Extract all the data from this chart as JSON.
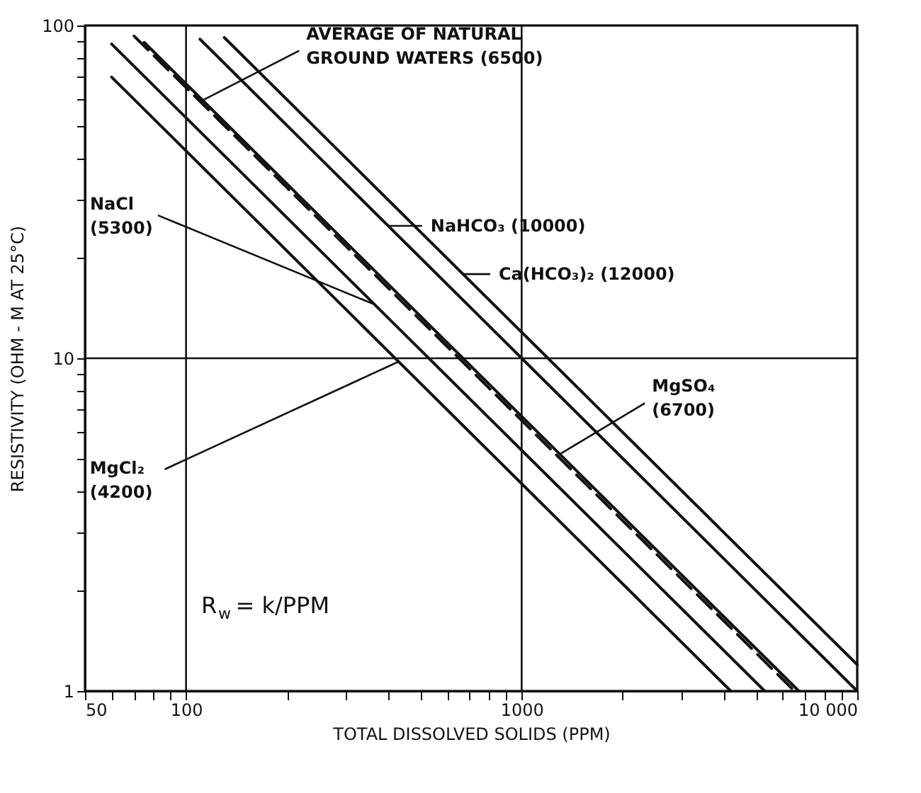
{
  "chart_data": {
    "type": "line",
    "xlabel": "TOTAL DISSOLVED SOLIDS (PPM)",
    "ylabel": "RESISTIVITY (OHM - M AT 25°C)",
    "log": "xy",
    "grid": true,
    "xlim": [
      50,
      10000
    ],
    "ylim": [
      1,
      100
    ],
    "xticks": [
      50,
      {
        "value": 60,
        "label": null
      },
      {
        "value": 70,
        "label": null
      },
      {
        "value": 80,
        "label": null
      },
      {
        "value": 90,
        "label": null
      },
      100,
      {
        "value": 200,
        "label": null
      },
      {
        "value": 300,
        "label": null
      },
      {
        "value": 400,
        "label": null
      },
      {
        "value": 500,
        "label": null
      },
      {
        "value": 600,
        "label": null
      },
      {
        "value": 700,
        "label": null
      },
      {
        "value": 800,
        "label": null
      },
      {
        "value": 900,
        "label": null
      },
      1000,
      {
        "value": 2000,
        "label": null
      },
      {
        "value": 3000,
        "label": null
      },
      {
        "value": 4000,
        "label": null
      },
      {
        "value": 5000,
        "label": null
      },
      {
        "value": 6000,
        "label": null
      },
      {
        "value": 7000,
        "label": null
      },
      {
        "value": 8000,
        "label": null
      },
      {
        "value": 9000,
        "label": null
      },
      {
        "value": 10000,
        "label": "10 000"
      }
    ],
    "yticks": [
      1,
      {
        "value": 2,
        "label": null
      },
      {
        "value": 3,
        "label": null
      },
      {
        "value": 4,
        "label": null
      },
      {
        "value": 5,
        "label": null
      },
      {
        "value": 6,
        "label": null
      },
      {
        "value": 7,
        "label": null
      },
      {
        "value": 8,
        "label": null
      },
      {
        "value": 9,
        "label": null
      },
      10,
      {
        "value": 20,
        "label": null
      },
      {
        "value": 30,
        "label": null
      },
      {
        "value": 40,
        "label": null
      },
      {
        "value": 50,
        "label": null
      },
      {
        "value": 60,
        "label": null
      },
      {
        "value": 70,
        "label": null
      },
      {
        "value": 80,
        "label": null
      },
      {
        "value": 90,
        "label": null
      },
      100
    ],
    "series": [
      {
        "color": "#111111",
        "line_style": "solid",
        "x": [
          60,
          4200
        ],
        "values": [
          70,
          1
        ]
      },
      {
        "color": "#111111",
        "line_style": "solid",
        "x": [
          60,
          5300
        ],
        "values": [
          88,
          1
        ]
      },
      {
        "color": "#111111",
        "line_style": "dashed",
        "x": [
          70,
          6500
        ],
        "values": [
          93,
          1
        ]
      },
      {
        "color": "#111111",
        "line_style": "solid",
        "x": [
          75,
          6700
        ],
        "values": [
          89,
          1
        ]
      },
      {
        "color": "#111111",
        "line_style": "solid",
        "x": [
          110,
          10000
        ],
        "values": [
          91,
          1
        ]
      },
      {
        "color": "#111111",
        "line_style": "solid",
        "x": [
          130,
          10000
        ],
        "values": [
          92,
          1.2
        ]
      }
    ],
    "annotations": [
      {
        "text": "AVERAGE OF NATURAL\nGROUND WATERS (6500)",
        "x": 110,
        "y": 59
      },
      {
        "text": "NaHCO₃ (10000)",
        "x": 400,
        "y": 25
      },
      {
        "text": "Ca(HCO₃)₂ (12000)",
        "x": 670,
        "y": 17.9
      },
      {
        "text": "NaCl\n(5300)",
        "x": 365,
        "y": 14.5
      },
      {
        "text": "MgCl₂\n(4200)",
        "x": 430,
        "y": 9.77
      },
      {
        "text": "MgSO₄\n(6700)",
        "x": 1300,
        "y": 5.15
      },
      "R$_{w}$ = k/PPM"
    ]
  }
}
